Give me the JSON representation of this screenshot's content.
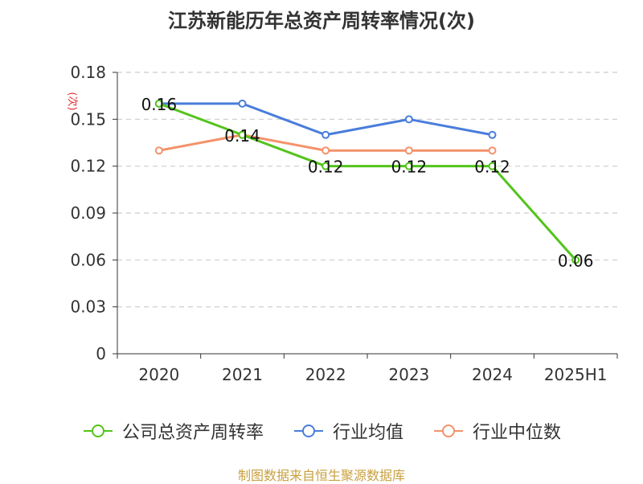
{
  "chart_data": {
    "type": "line",
    "title": "江苏新能历年总资产周转率情况(次)",
    "ylabel": "(次)",
    "xlabel": "",
    "categories": [
      "2020",
      "2021",
      "2022",
      "2023",
      "2024",
      "2025H1"
    ],
    "ylim": [
      0,
      0.18
    ],
    "yticks": [
      "0",
      "0.03",
      "0.06",
      "0.09",
      "0.12",
      "0.15",
      "0.18"
    ],
    "grid": true,
    "legend_position": "bottom",
    "series": [
      {
        "name": "公司总资产周转率",
        "color": "#52c41a",
        "values": [
          0.16,
          0.14,
          0.12,
          0.12,
          0.12,
          0.06
        ],
        "labels": [
          "0.16",
          "0.14",
          "0.12",
          "0.12",
          "0.12",
          "0.06"
        ]
      },
      {
        "name": "行业均值",
        "color": "#4a7ddb",
        "values": [
          0.16,
          0.16,
          0.14,
          0.15,
          0.14,
          null
        ]
      },
      {
        "name": "行业中位数",
        "color": "#f4926a",
        "values": [
          0.13,
          0.14,
          0.13,
          0.13,
          0.13,
          null
        ]
      }
    ]
  },
  "footer": {
    "source": "制图数据来自恒生聚源数据库"
  }
}
